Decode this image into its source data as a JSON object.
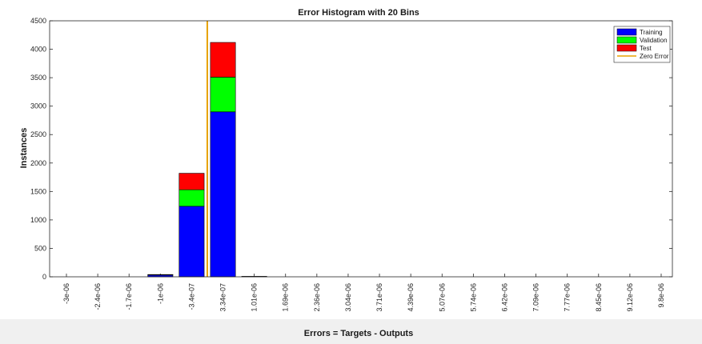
{
  "chart_data": {
    "type": "bar",
    "stacked": true,
    "title": "Error Histogram with 20 Bins",
    "xlabel": "Errors = Targets - Outputs",
    "ylabel": "Instances",
    "ylim": [
      0,
      4500
    ],
    "yticks": [
      0,
      500,
      1000,
      1500,
      2000,
      2500,
      3000,
      3500,
      4000,
      4500
    ],
    "grid": false,
    "legend_position": "top-right",
    "categories": [
      "-3e-06",
      "-2.4e-06",
      "-1.7e-06",
      "-1e-06",
      "-3.4e-07",
      "3.34e-07",
      "1.01e-06",
      "1.69e-06",
      "2.36e-06",
      "3.04e-06",
      "3.71e-06",
      "4.39e-06",
      "5.07e-06",
      "5.74e-06",
      "6.42e-06",
      "7.09e-06",
      "7.77e-06",
      "8.45e-06",
      "9.12e-06",
      "9.8e-06"
    ],
    "series": [
      {
        "name": "Training",
        "color": "#0000ff",
        "values": [
          0,
          0,
          0,
          30,
          1240,
          2900,
          5,
          0,
          0,
          0,
          0,
          0,
          0,
          0,
          0,
          0,
          0,
          0,
          0,
          0
        ]
      },
      {
        "name": "Validation",
        "color": "#00ff00",
        "values": [
          0,
          0,
          0,
          5,
          290,
          610,
          1,
          0,
          0,
          0,
          0,
          0,
          0,
          0,
          0,
          0,
          0,
          0,
          0,
          0
        ]
      },
      {
        "name": "Test",
        "color": "#ff0000",
        "values": [
          0,
          0,
          0,
          5,
          290,
          610,
          1,
          0,
          0,
          0,
          0,
          0,
          0,
          0,
          0,
          0,
          0,
          0,
          0,
          0
        ]
      }
    ],
    "zero_line": {
      "name": "Zero Error",
      "color": "#e8a200",
      "x": 0
    }
  }
}
